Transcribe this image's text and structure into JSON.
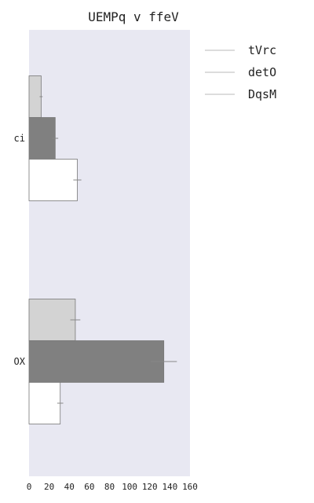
{
  "chart_data": {
    "type": "bar",
    "orientation": "horizontal",
    "title": "UEMPq v ffeV",
    "categories": [
      "ci",
      "OX"
    ],
    "series": [
      {
        "name": "tVrc",
        "values": [
          12,
          46
        ],
        "errors": [
          1.5,
          5
        ],
        "color": "#d3d3d3"
      },
      {
        "name": "detO",
        "values": [
          26,
          134
        ],
        "errors": [
          3,
          13
        ],
        "color": "#808080"
      },
      {
        "name": "DqsM",
        "values": [
          48,
          31
        ],
        "errors": [
          4,
          3
        ],
        "color": "#ffffff"
      }
    ],
    "xlim": [
      0,
      160
    ],
    "xticks": [
      "0",
      "20",
      "40",
      "60",
      "80",
      "100",
      "120",
      "140",
      "160"
    ],
    "xlabel": "",
    "ylabel": "",
    "grid": false,
    "plot_background": "#e8e8f2",
    "legend_position": "right-top"
  }
}
